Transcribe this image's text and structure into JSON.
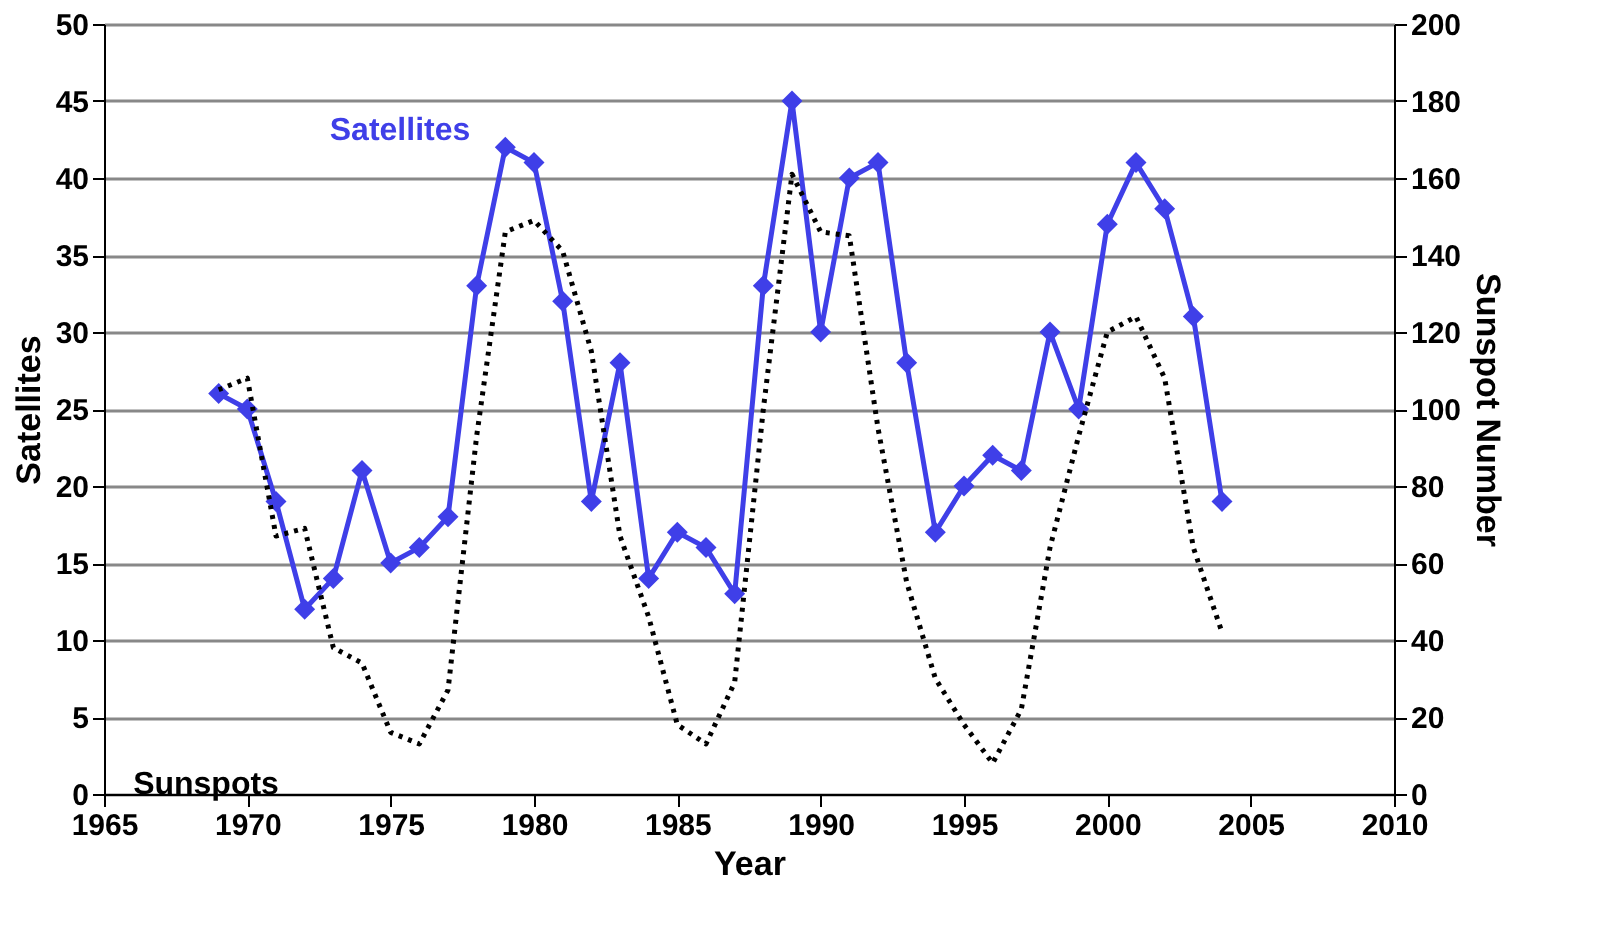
{
  "chart_data": {
    "type": "line",
    "xlabel": "Year",
    "ylabel": "Satellites",
    "y2label": "Sunspot Number",
    "xlim": [
      1965,
      2010
    ],
    "xticks": [
      1965,
      1970,
      1975,
      1980,
      1985,
      1990,
      1995,
      2000,
      2005,
      2010
    ],
    "ylim": [
      0,
      50
    ],
    "yticks": [
      0,
      5,
      10,
      15,
      20,
      25,
      30,
      35,
      40,
      45,
      50
    ],
    "y2lim": [
      0,
      200
    ],
    "y2ticks": [
      0,
      20,
      40,
      60,
      80,
      100,
      120,
      140,
      160,
      180,
      200
    ],
    "grid": "y",
    "legend": false,
    "series": [
      {
        "name": "Satellites",
        "color": "#3f3fe8",
        "marker": "diamond",
        "line_style": "solid",
        "x": [
          1969,
          1970,
          1971,
          1972,
          1973,
          1974,
          1975,
          1976,
          1977,
          1978,
          1979,
          1980,
          1981,
          1982,
          1983,
          1984,
          1985,
          1986,
          1987,
          1988,
          1989,
          1990,
          1991,
          1992,
          1993,
          1994,
          1995,
          1996,
          1997,
          1998,
          1999,
          2000,
          2001,
          2002,
          2003,
          2004
        ],
        "values": [
          26,
          25,
          19,
          12,
          14,
          21,
          15,
          16,
          18,
          33,
          42,
          41,
          32,
          19,
          28,
          14,
          17,
          16,
          13,
          33,
          45,
          30,
          40,
          41,
          28,
          17,
          20,
          22,
          21,
          30,
          25,
          37,
          41,
          38,
          31,
          19
        ]
      },
      {
        "name": "Sunspots",
        "color": "#000000",
        "marker": "none",
        "line_style": "dotted",
        "axis": "y2",
        "x": [
          1969,
          1970,
          1971,
          1972,
          1973,
          1974,
          1975,
          1976,
          1977,
          1978,
          1979,
          1980,
          1981,
          1982,
          1983,
          1984,
          1985,
          1986,
          1987,
          1988,
          1989,
          1990,
          1991,
          1992,
          1993,
          1994,
          1995,
          1996,
          1997,
          1998,
          1999,
          2000,
          2001,
          2002,
          2003,
          2004
        ],
        "values": [
          105,
          108,
          67,
          69,
          38,
          34,
          16,
          13,
          27,
          93,
          146,
          149,
          141,
          115,
          67,
          46,
          18,
          13,
          29,
          100,
          161,
          146,
          145,
          95,
          55,
          30,
          18,
          8,
          22,
          64,
          93,
          120,
          124,
          108,
          64,
          42
        ]
      }
    ]
  }
}
